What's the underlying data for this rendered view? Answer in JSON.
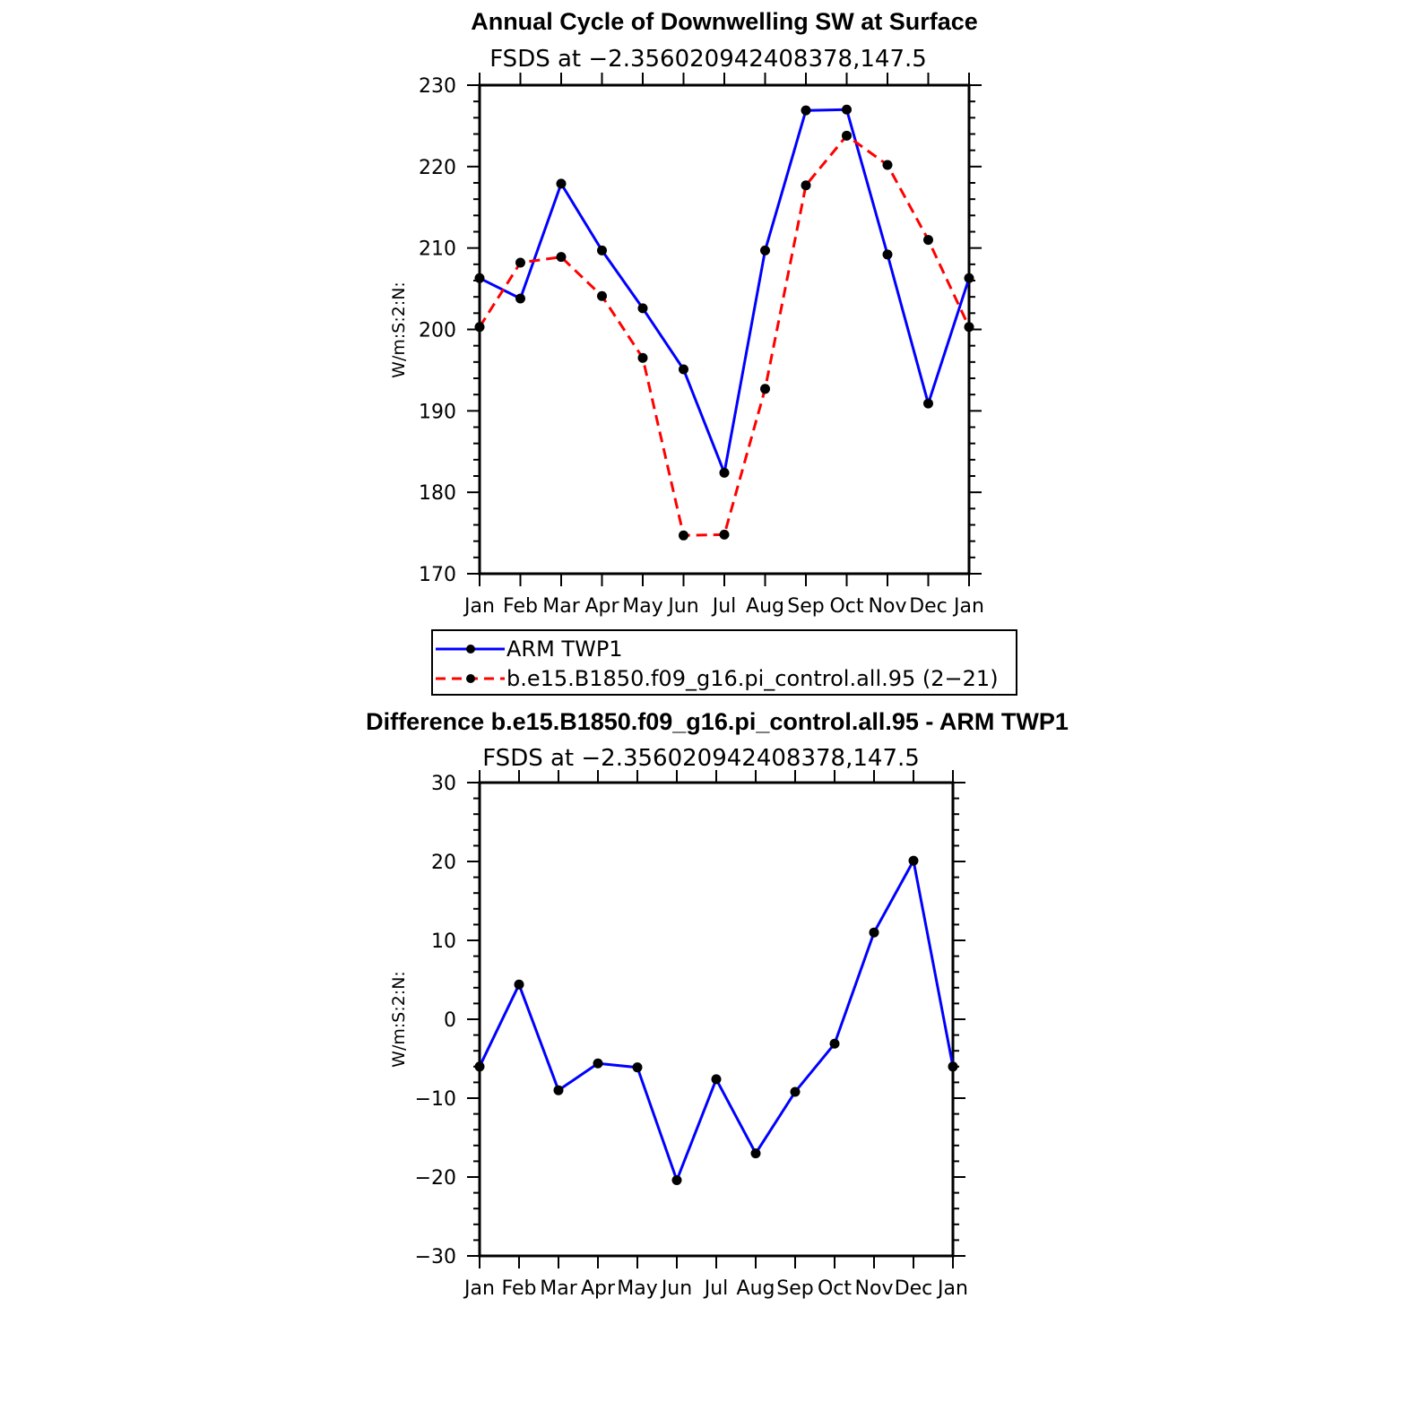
{
  "chart_data": [
    {
      "type": "line",
      "title": "Annual Cycle of Downwelling SW at Surface",
      "subtitle": "FSDS at −2.356020942408378,147.5",
      "ylabel": "W/m:S:2:N:",
      "xlabel": "",
      "ylim": [
        170,
        230
      ],
      "yticks": [
        170,
        180,
        190,
        200,
        210,
        220,
        230
      ],
      "ytick_labels": [
        "170",
        "180",
        "190",
        "200",
        "210",
        "220",
        "230"
      ],
      "categories": [
        "Jan",
        "Feb",
        "Mar",
        "Apr",
        "May",
        "Jun",
        "Jul",
        "Aug",
        "Sep",
        "Oct",
        "Nov",
        "Dec",
        "Jan"
      ],
      "series": [
        {
          "name": "ARM TWP1",
          "color": "#0000ff",
          "dash": "solid",
          "values": [
            206.3,
            203.8,
            217.9,
            209.7,
            202.6,
            195.1,
            182.4,
            209.7,
            226.9,
            227.0,
            209.2,
            190.9,
            206.3
          ]
        },
        {
          "name": "b.e15.B1850.f09_g16.pi_control.all.95 (2−21)",
          "color": "#ff0000",
          "dash": "dashed",
          "values": [
            200.3,
            208.2,
            208.9,
            204.1,
            196.5,
            174.7,
            174.8,
            192.7,
            217.7,
            223.8,
            220.2,
            211.0,
            200.3
          ]
        }
      ]
    },
    {
      "type": "line",
      "title": "Difference b.e15.B1850.f09_g16.pi_control.all.95 - ARM TWP1",
      "subtitle": "FSDS at −2.356020942408378,147.5",
      "ylabel": "W/m:S:2:N:",
      "xlabel": "",
      "ylim": [
        -30,
        30
      ],
      "yticks": [
        -30,
        -20,
        -10,
        0,
        10,
        20,
        30
      ],
      "ytick_labels": [
        "−30",
        "−20",
        "−10",
        "0",
        "10",
        "20",
        "30"
      ],
      "categories": [
        "Jan",
        "Feb",
        "Mar",
        "Apr",
        "May",
        "Jun",
        "Jul",
        "Aug",
        "Sep",
        "Oct",
        "Nov",
        "Dec",
        "Jan"
      ],
      "series": [
        {
          "name": "Difference",
          "color": "#0000ff",
          "dash": "solid",
          "values": [
            -6.0,
            4.4,
            -9.0,
            -5.6,
            -6.1,
            -20.4,
            -7.6,
            -17.0,
            -9.2,
            -3.1,
            11.0,
            20.1,
            -6.0
          ]
        }
      ]
    }
  ]
}
